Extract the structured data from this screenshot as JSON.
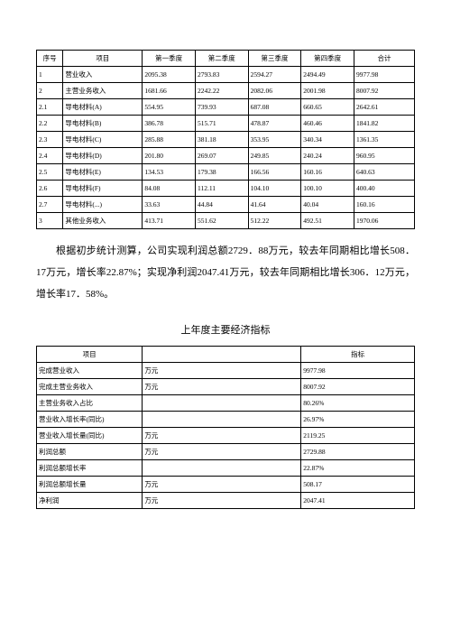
{
  "table1": {
    "headers": [
      "序号",
      "项目",
      "第一季度",
      "第二季度",
      "第三季度",
      "第四季度",
      "合计"
    ],
    "rows": [
      [
        "1",
        "营业收入",
        "2095.38",
        "2793.83",
        "2594.27",
        "2494.49",
        "9977.98"
      ],
      [
        "2",
        "主营业务收入",
        "1681.66",
        "2242.22",
        "2082.06",
        "2001.98",
        "8007.92"
      ],
      [
        "2.1",
        "导电材料(A)",
        "554.95",
        "739.93",
        "687.08",
        "660.65",
        "2642.61"
      ],
      [
        "2.2",
        "导电材料(B)",
        "386.78",
        "515.71",
        "478.87",
        "460.46",
        "1841.82"
      ],
      [
        "2.3",
        "导电材料(C)",
        "285.88",
        "381.18",
        "353.95",
        "340.34",
        "1361.35"
      ],
      [
        "2.4",
        "导电材料(D)",
        "201.80",
        "269.07",
        "249.85",
        "240.24",
        "960.95"
      ],
      [
        "2.5",
        "导电材料(E)",
        "134.53",
        "179.38",
        "166.56",
        "160.16",
        "640.63"
      ],
      [
        "2.6",
        "导电材料(F)",
        "84.08",
        "112.11",
        "104.10",
        "100.10",
        "400.40"
      ],
      [
        "2.7",
        "导电材料(...)",
        "33.63",
        "44.84",
        "41.64",
        "40.04",
        "160.16"
      ],
      [
        "3",
        "其他业务收入",
        "413.71",
        "551.62",
        "512.22",
        "492.51",
        "1970.06"
      ]
    ]
  },
  "paragraph": "根据初步统计测算，公司实现利润总额2729．88万元，较去年同期相比增长508．17万元，增长率22.87%；实现净利润2047.41万元，较去年同期相比增长306．12万元，增长率17．58%。",
  "section_title": "上年度主要经济指标",
  "table2": {
    "headers": [
      "项目",
      "",
      "指标"
    ],
    "rows": [
      [
        "完成营业收入",
        "万元",
        "9977.98"
      ],
      [
        "完成主营业务收入",
        "万元",
        "8007.92"
      ],
      [
        "主营业务收入占比",
        "",
        "80.26%"
      ],
      [
        "营业收入增长率(同比)",
        "",
        "26.97%"
      ],
      [
        "营业收入增长量(同比)",
        "万元",
        "2119.25"
      ],
      [
        "利润总额",
        "万元",
        "2729.88"
      ],
      [
        "利润总额增长率",
        "",
        "22.87%"
      ],
      [
        "利润总额增长量",
        "万元",
        "508.17"
      ],
      [
        "净利润",
        "万元",
        "2047.41"
      ]
    ]
  }
}
